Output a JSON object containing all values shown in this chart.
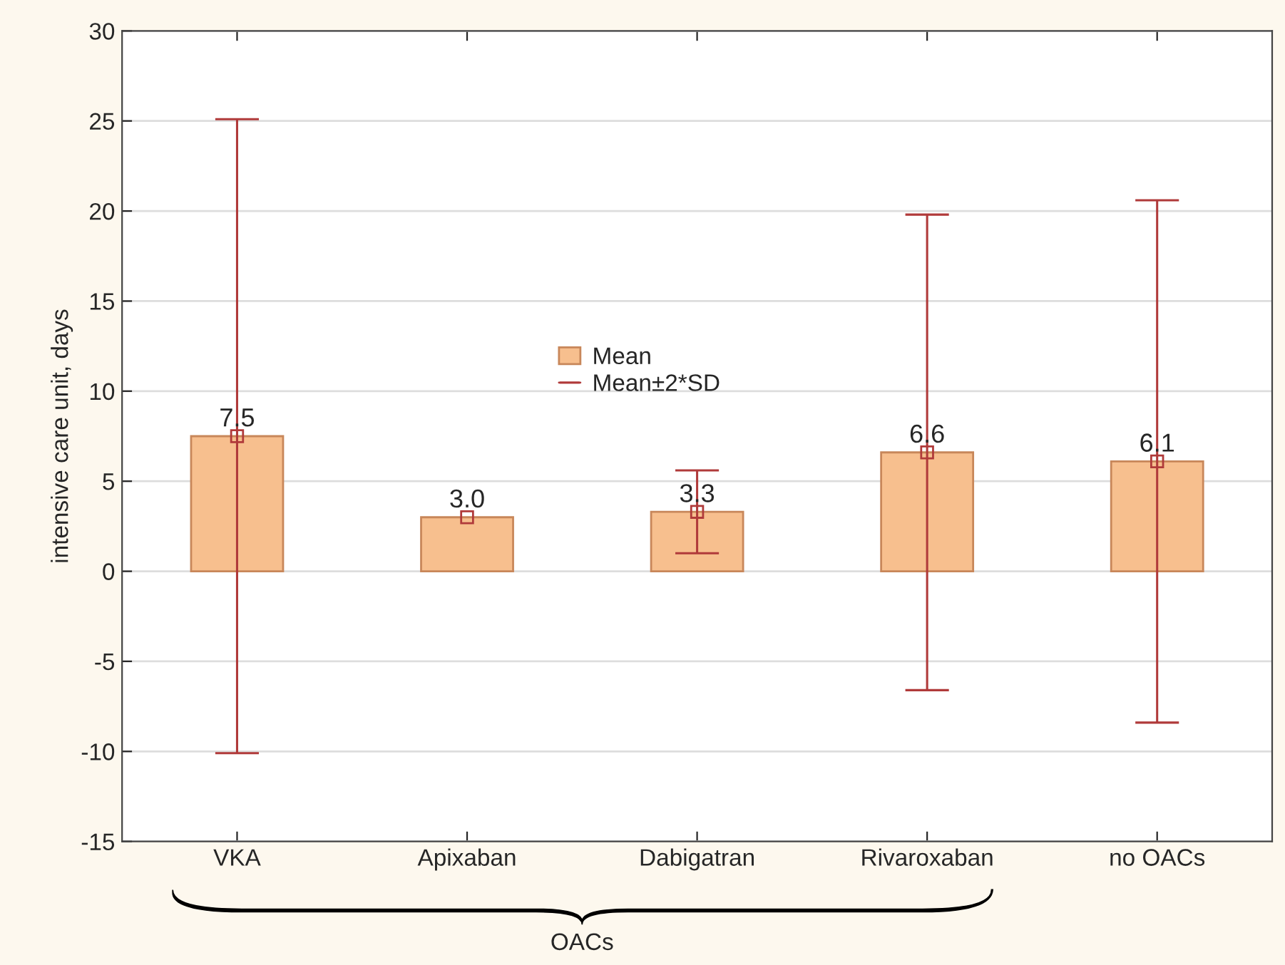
{
  "chart_data": {
    "type": "bar",
    "ylabel": "intensive care unit, days",
    "categories": [
      "VKA",
      "Apixaban",
      "Dabigatran",
      "Rivaroxaban",
      "no OACs"
    ],
    "series": [
      {
        "name": "Mean",
        "color": "#f7bf8e",
        "values": [
          7.5,
          3.0,
          3.3,
          6.6,
          6.1
        ],
        "errors": [
          17.6,
          null,
          2.3,
          13.2,
          14.5
        ]
      },
      {
        "type": "scatter",
        "color": "#b03a3a",
        "x": [
          "VKA",
          "Apixaban",
          "Dabigatran",
          "Rivaroxaban",
          "no OACs"
        ],
        "values": [
          7.5,
          3.0,
          3.3,
          6.6,
          6.1
        ]
      }
    ],
    "value_labels": [
      "7.5",
      "3.0",
      "3.3",
      "6.6",
      "6.1"
    ],
    "marker": "square",
    "ylim": [
      -15,
      30
    ],
    "yticks": [
      -15,
      -10,
      -5,
      0,
      5,
      10,
      15,
      20,
      25,
      30
    ],
    "grid": "y",
    "legend": "center",
    "annotations": [
      "Mean±2*SD",
      "OACs"
    ]
  }
}
